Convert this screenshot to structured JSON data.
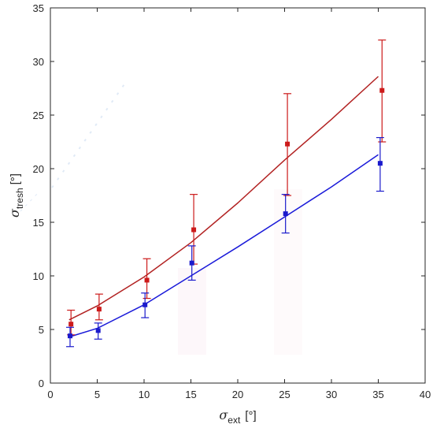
{
  "chart_data": {
    "type": "scatter",
    "title": "",
    "xlabel": {
      "symbol": "σ",
      "sub": "ext",
      "unit": "[°]"
    },
    "ylabel": {
      "symbol": "σ",
      "sub": "tresh",
      "unit": "[°]"
    },
    "xlim": [
      0,
      40
    ],
    "ylim": [
      0,
      35
    ],
    "xticks": [
      0,
      5,
      10,
      15,
      20,
      25,
      30,
      35,
      40
    ],
    "yticks": [
      0,
      5,
      10,
      15,
      20,
      25,
      30,
      35
    ],
    "grid": false,
    "legend": "none",
    "series": [
      {
        "color": "#cc1a1a",
        "points": [
          {
            "x": 2.2,
            "y": 5.5,
            "err_low": 1.0,
            "err_high": 1.3
          },
          {
            "x": 5.2,
            "y": 6.9,
            "err_low": 1.0,
            "err_high": 1.4
          },
          {
            "x": 10.3,
            "y": 9.6,
            "err_low": 1.7,
            "err_high": 2.0
          },
          {
            "x": 15.3,
            "y": 14.3,
            "err_low": 3.2,
            "err_high": 3.3
          },
          {
            "x": 25.3,
            "y": 22.3,
            "err_low": 4.8,
            "err_high": 4.7
          },
          {
            "x": 35.4,
            "y": 27.3,
            "err_low": 4.8,
            "err_high": 4.7
          }
        ],
        "fit": {
          "x": [
            2.0,
            5.0,
            10.0,
            15.0,
            20.0,
            25.0,
            30.0,
            35.0
          ],
          "y": [
            5.9,
            7.2,
            9.9,
            13.1,
            16.8,
            20.8,
            24.6,
            28.6
          ],
          "color": "#b22222"
        }
      },
      {
        "color": "#1a1acc",
        "points": [
          {
            "x": 2.1,
            "y": 4.4,
            "err_low": 1.0,
            "err_high": 0.8
          },
          {
            "x": 5.1,
            "y": 4.9,
            "err_low": 0.8,
            "err_high": 0.7
          },
          {
            "x": 10.1,
            "y": 7.3,
            "err_low": 1.2,
            "err_high": 1.1
          },
          {
            "x": 15.1,
            "y": 11.2,
            "err_low": 1.6,
            "err_high": 1.6
          },
          {
            "x": 25.1,
            "y": 15.8,
            "err_low": 1.8,
            "err_high": 1.8
          },
          {
            "x": 35.2,
            "y": 20.5,
            "err_low": 2.6,
            "err_high": 2.4
          }
        ],
        "fit": {
          "x": [
            2.0,
            5.0,
            10.0,
            15.0,
            20.0,
            25.0,
            30.0,
            35.0
          ],
          "y": [
            4.3,
            5.1,
            7.3,
            10.0,
            12.7,
            15.5,
            18.3,
            21.3
          ],
          "color": "#1a1ad9"
        }
      }
    ]
  }
}
